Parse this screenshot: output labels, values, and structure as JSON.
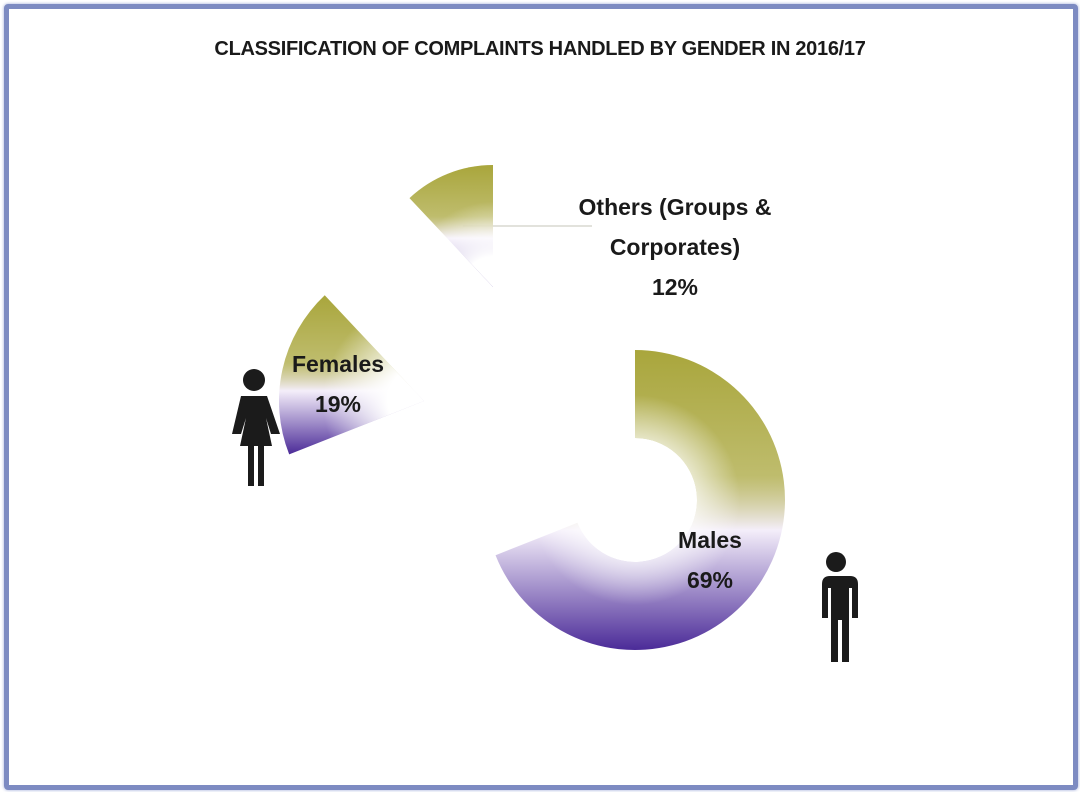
{
  "chart_data": {
    "type": "pie",
    "title": "CLASSIFICATION OF COMPLAINTS HANDLED BY GENDER IN 2016/17",
    "categories": [
      "Males",
      "Females",
      "Others (Groups & Corporates)"
    ],
    "values": [
      69,
      19,
      12
    ],
    "value_labels": [
      "69%",
      "19%",
      "12%"
    ],
    "colors": {
      "top": "#a9a63c",
      "bottom": "#4b2b98"
    }
  }
}
